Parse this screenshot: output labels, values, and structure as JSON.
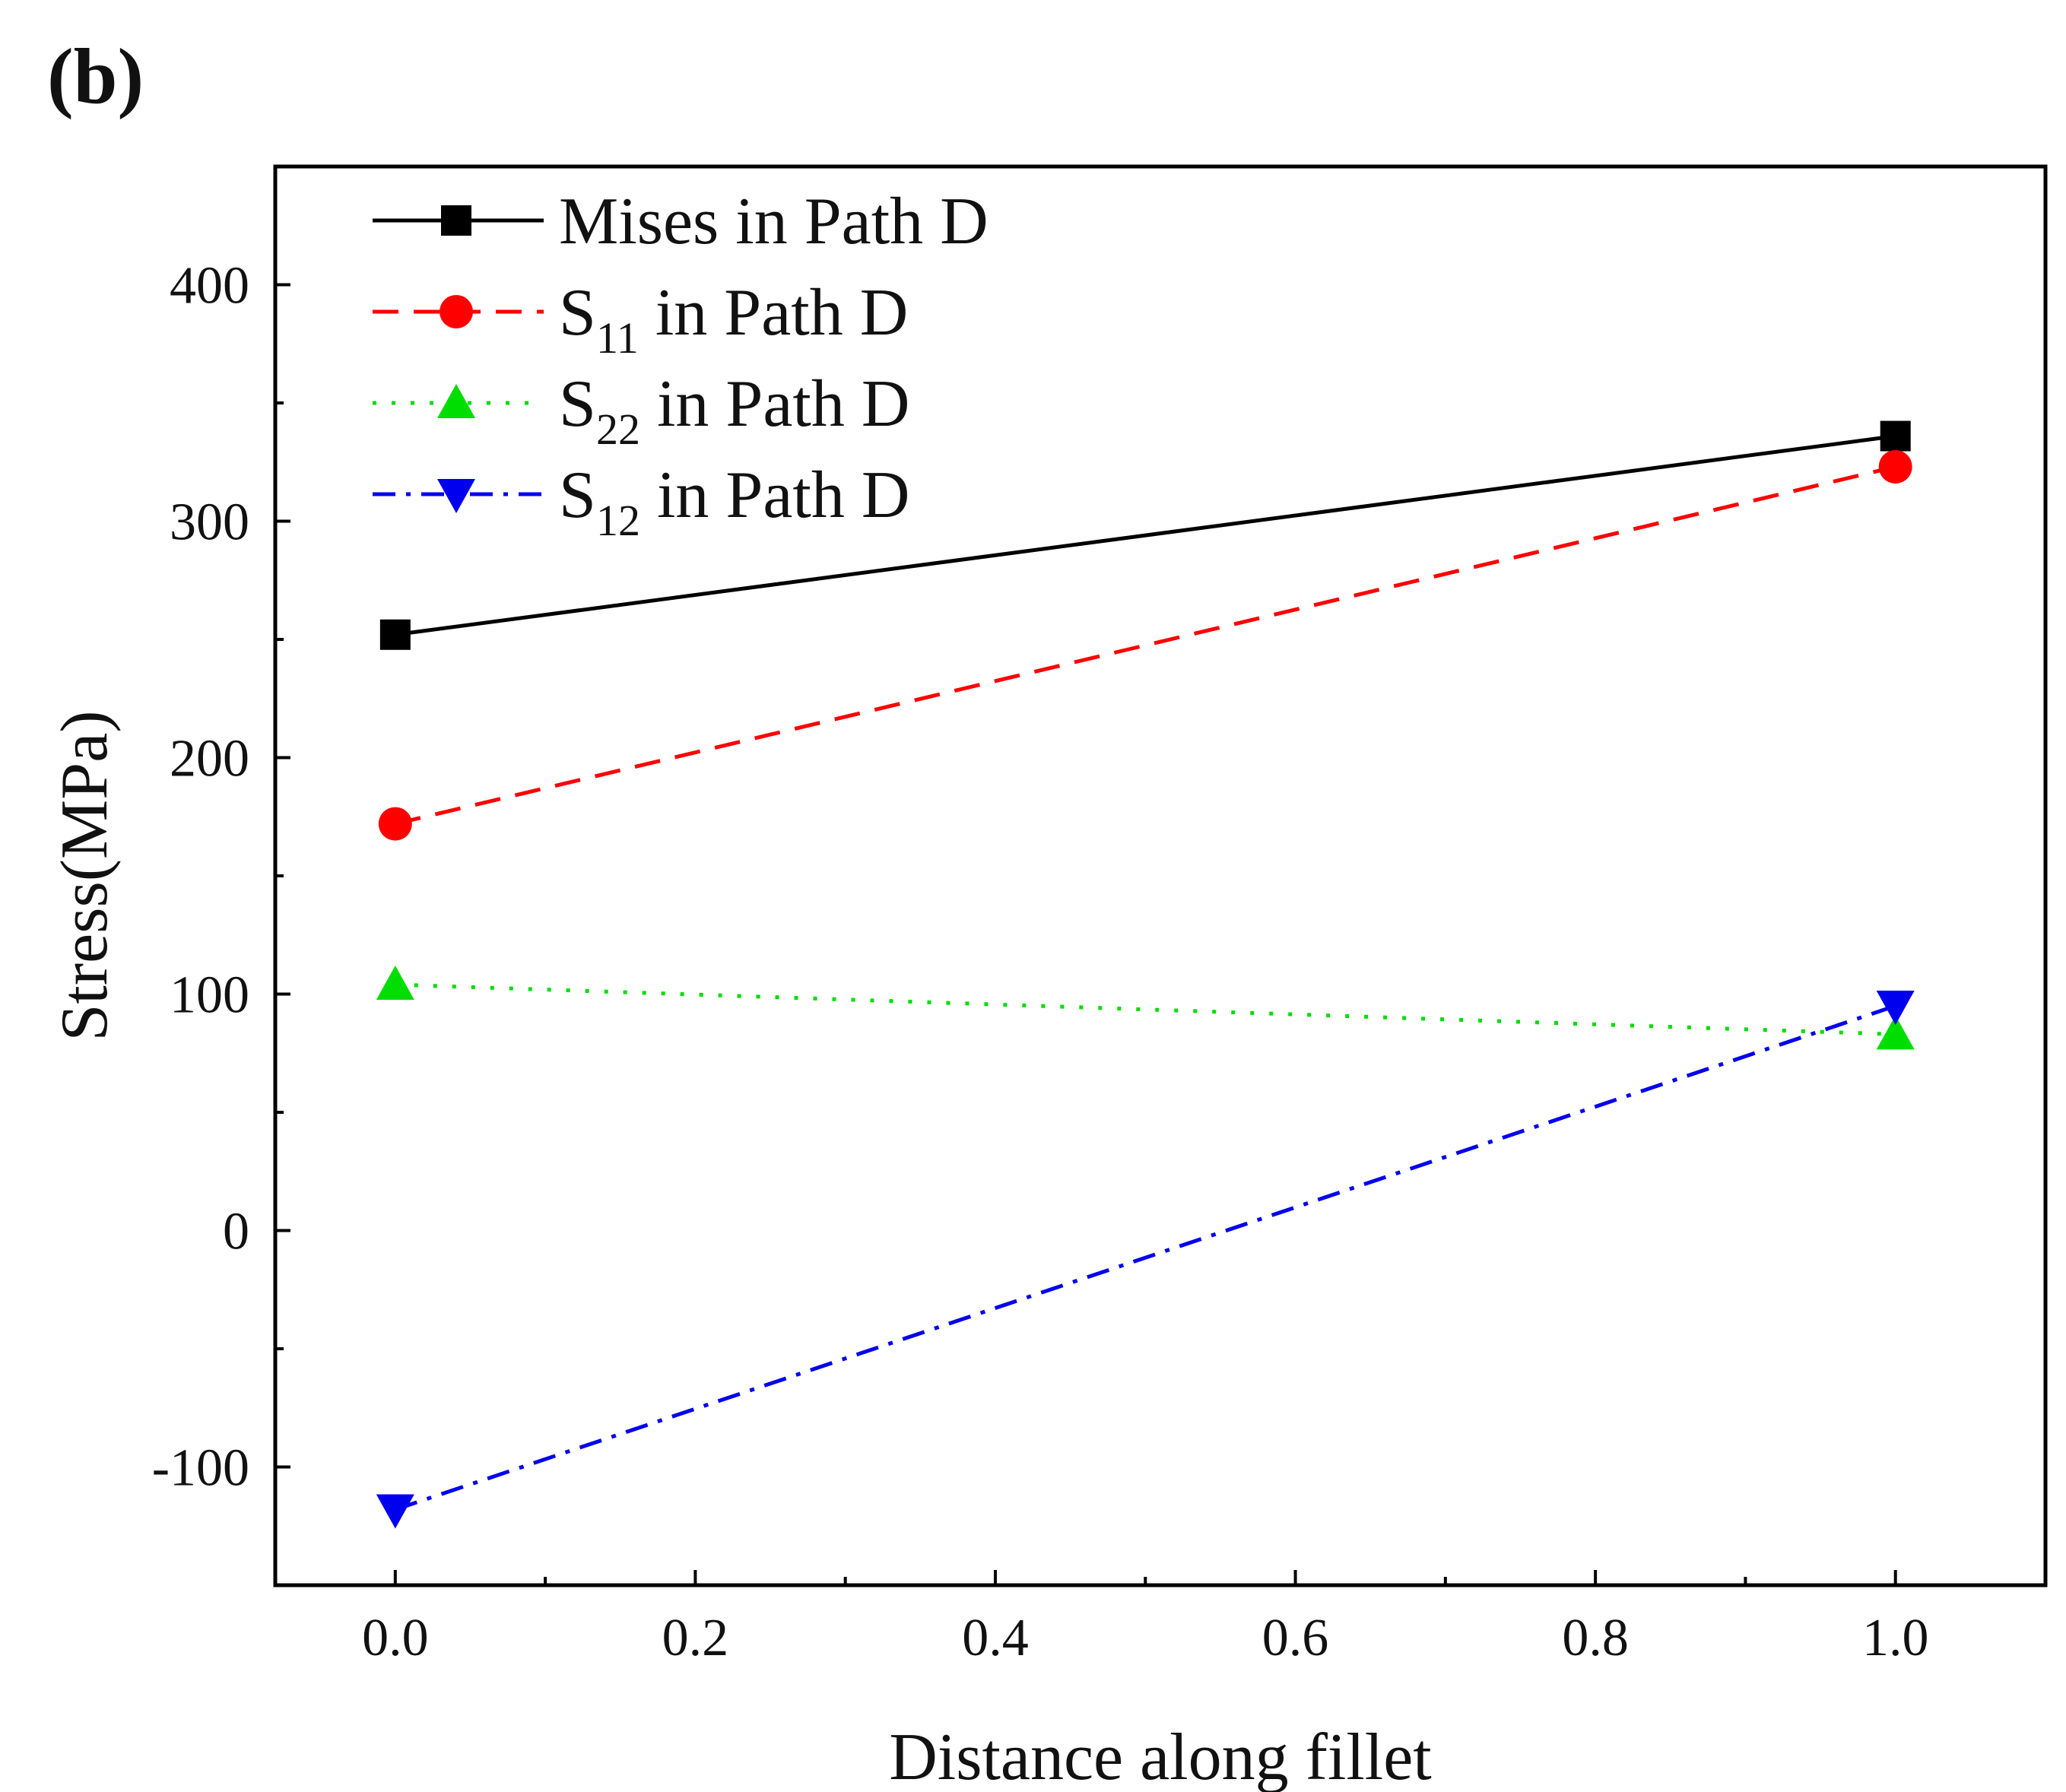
{
  "panel_label": "(b)",
  "chart_data": {
    "type": "line",
    "title": "",
    "xlabel": "Distance along fillet",
    "ylabel": "Stress(MPa)",
    "xlim": [
      -0.08,
      1.1
    ],
    "ylim": [
      -150,
      450
    ],
    "xticks": [
      0.0,
      0.2,
      0.4,
      0.6,
      0.8,
      1.0
    ],
    "xtick_labels": [
      "0.0",
      "0.2",
      "0.4",
      "0.6",
      "0.8",
      "1.0"
    ],
    "yticks": [
      -100,
      0,
      100,
      200,
      300,
      400
    ],
    "ytick_labels": [
      "-100",
      "0",
      "100",
      "200",
      "300",
      "400"
    ],
    "grid": false,
    "legend_position": "top-left",
    "series": [
      {
        "name": "Mises in Path D",
        "name_main": "Mises",
        "name_sub": "",
        "name_rest": " in Path D",
        "color": "#000000",
        "dash": "solid",
        "marker": "square",
        "x": [
          0.0,
          1.0
        ],
        "y": [
          252,
          336
        ]
      },
      {
        "name": "S11 in Path D",
        "name_main": "S",
        "name_sub": "11",
        "name_rest": " in Path D",
        "color": "#ff0000",
        "dash": "dashed",
        "marker": "circle",
        "x": [
          0.0,
          1.0
        ],
        "y": [
          172,
          323
        ]
      },
      {
        "name": "S22 in Path D",
        "name_main": "S",
        "name_sub": "22",
        "name_rest": " in Path D",
        "color": "#00dd00",
        "dash": "dotted",
        "marker": "triangle-up",
        "x": [
          0.0,
          1.0
        ],
        "y": [
          104,
          83
        ]
      },
      {
        "name": "S12 in Path D",
        "name_main": "S",
        "name_sub": "12",
        "name_rest": " in Path D",
        "color": "#0000ee",
        "dash": "dashdot",
        "marker": "triangle-down",
        "x": [
          0.0,
          1.0
        ],
        "y": [
          -118,
          95
        ]
      }
    ]
  }
}
